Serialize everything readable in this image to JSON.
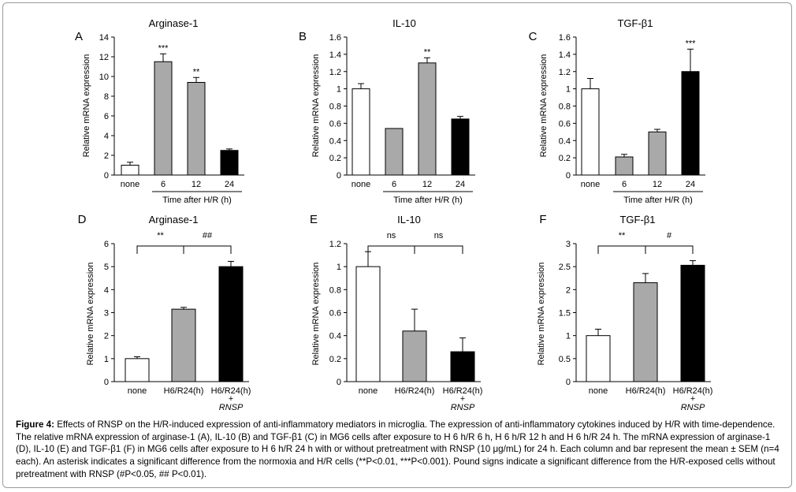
{
  "chart_data": [
    {
      "id": "A",
      "panel_letter": "A",
      "title": "Arginase-1",
      "type": "bar",
      "ylabel": "Relative mRNA expression",
      "xlabel": "Time after H/R (h)",
      "categories": [
        [
          "none"
        ],
        [
          "6"
        ],
        [
          "12"
        ],
        [
          "24"
        ]
      ],
      "values": [
        1.0,
        11.5,
        9.4,
        2.5
      ],
      "errors": [
        0.3,
        0.8,
        0.5,
        0.15
      ],
      "fills": [
        "#ffffff",
        "#a9a9a9",
        "#a9a9a9",
        "#000000"
      ],
      "annotations": [
        "",
        "***",
        "**",
        ""
      ],
      "ylim": [
        0,
        14
      ],
      "yticks": [
        0,
        2,
        4,
        6,
        8,
        10,
        12,
        14
      ],
      "brackets": [],
      "grid": false
    },
    {
      "id": "B",
      "panel_letter": "B",
      "title": "IL-10",
      "type": "bar",
      "ylabel": "Relative mRNA expression",
      "xlabel": "Time after H/R (h)",
      "categories": [
        [
          "none"
        ],
        [
          "6"
        ],
        [
          "12"
        ],
        [
          "24"
        ]
      ],
      "values": [
        1.0,
        0.54,
        1.3,
        0.65
      ],
      "errors": [
        0.06,
        0.0,
        0.06,
        0.03
      ],
      "fills": [
        "#ffffff",
        "#a9a9a9",
        "#a9a9a9",
        "#000000"
      ],
      "annotations": [
        "",
        "",
        "**",
        ""
      ],
      "ylim": [
        0,
        1.6
      ],
      "yticks": [
        "0",
        "0.2",
        "0.4",
        "0.6",
        "0.8",
        "1",
        "1.2",
        "1.4",
        "1.6"
      ],
      "brackets": [],
      "grid": false
    },
    {
      "id": "C",
      "panel_letter": "C",
      "title": "TGF-β1",
      "type": "bar",
      "ylabel": "Relative mRNA expression",
      "xlabel": "Time after H/R (h)",
      "categories": [
        [
          "none"
        ],
        [
          "6"
        ],
        [
          "12"
        ],
        [
          "24"
        ]
      ],
      "values": [
        1.0,
        0.21,
        0.5,
        1.2
      ],
      "errors": [
        0.12,
        0.03,
        0.03,
        0.26
      ],
      "fills": [
        "#ffffff",
        "#a9a9a9",
        "#a9a9a9",
        "#000000"
      ],
      "annotations": [
        "",
        "",
        "",
        "***"
      ],
      "ylim": [
        0,
        1.6
      ],
      "yticks": [
        "0",
        "0.2",
        "0.4",
        "0.6",
        "0.8",
        "1",
        "1.2",
        "1.4",
        "1.6"
      ],
      "brackets": [],
      "grid": false
    },
    {
      "id": "D",
      "panel_letter": "D",
      "title": "Arginase-1",
      "type": "bar",
      "ylabel": "Relative mRNA expression",
      "xlabel": "",
      "categories": [
        [
          "none"
        ],
        [
          "H6/R24(h)"
        ],
        [
          "H6/R24(h)",
          "+",
          "RNSP"
        ]
      ],
      "values": [
        1.0,
        3.15,
        5.0
      ],
      "errors": [
        0.08,
        0.08,
        0.23
      ],
      "fills": [
        "#ffffff",
        "#a9a9a9",
        "#000000"
      ],
      "annotations": [
        "",
        "",
        ""
      ],
      "ylim": [
        0,
        6
      ],
      "yticks": [
        0,
        1,
        2,
        3,
        4,
        5,
        6
      ],
      "brackets": [
        {
          "from": 0,
          "to": 1,
          "label": "**"
        },
        {
          "from": 1,
          "to": 2,
          "label": "##"
        }
      ],
      "grid": false
    },
    {
      "id": "E",
      "panel_letter": "E",
      "title": "IL-10",
      "type": "bar",
      "ylabel": "Relative mRNA expression",
      "xlabel": "",
      "categories": [
        [
          "none"
        ],
        [
          "H6/R24(h)"
        ],
        [
          "H6/R24(h)",
          "+",
          "RNSP"
        ]
      ],
      "values": [
        1.0,
        0.44,
        0.26
      ],
      "errors": [
        0.13,
        0.19,
        0.12
      ],
      "fills": [
        "#ffffff",
        "#a9a9a9",
        "#000000"
      ],
      "annotations": [
        "",
        "",
        ""
      ],
      "ylim": [
        0,
        1.2
      ],
      "yticks": [
        "0",
        "0.2",
        "0.4",
        "0.6",
        "0.8",
        "1",
        "1.2"
      ],
      "brackets": [
        {
          "from": 0,
          "to": 1,
          "label": "ns"
        },
        {
          "from": 1,
          "to": 2,
          "label": "ns"
        }
      ],
      "grid": false
    },
    {
      "id": "F",
      "panel_letter": "F",
      "title": "TGF-β1",
      "type": "bar",
      "ylabel": "Relative mRNA expression",
      "xlabel": "",
      "categories": [
        [
          "none"
        ],
        [
          "H6/R24(h)"
        ],
        [
          "H6/R24(h)",
          "+",
          "RNSP"
        ]
      ],
      "values": [
        1.0,
        2.15,
        2.53
      ],
      "errors": [
        0.14,
        0.2,
        0.1
      ],
      "fills": [
        "#ffffff",
        "#a9a9a9",
        "#000000"
      ],
      "annotations": [
        "",
        "",
        ""
      ],
      "ylim": [
        0,
        3
      ],
      "yticks": [
        "0",
        "0.5",
        "1",
        "1.5",
        "2",
        "2.5",
        "3"
      ],
      "brackets": [
        {
          "from": 0,
          "to": 1,
          "label": "**"
        },
        {
          "from": 1,
          "to": 2,
          "label": "#"
        }
      ],
      "grid": false
    }
  ],
  "caption": {
    "label": "Figure 4:",
    "text": " Effects of RNSP on the H/R-induced expression of anti-inflammatory mediators in microglia. The expression of anti-inflammatory cytokines induced by H/R with time-dependence. The relative mRNA expression of arginase-1 (A), IL-10 (B) and TGF-β1 (C) in MG6 cells after exposure to H 6 h/R 6 h, H 6 h/R 12 h and H 6 h/R 24 h. The mRNA expression of arginase-1 (D), IL-10 (E) and TGF-β1 (F) in MG6 cells after exposure to H 6 h/R 24 h with or without pretreatment with RNSP (10 μg/mL) for 24 h. Each column and bar represent the mean ± SEM (n=4 each). An asterisk indicates a significant difference from the normoxia and H/R cells (**P<0.01, ***P<0.001). Pound signs indicate a significant difference from the H/R-exposed cells without pretreatment with RNSP (#P<0.05, ## P<0.01)."
  }
}
